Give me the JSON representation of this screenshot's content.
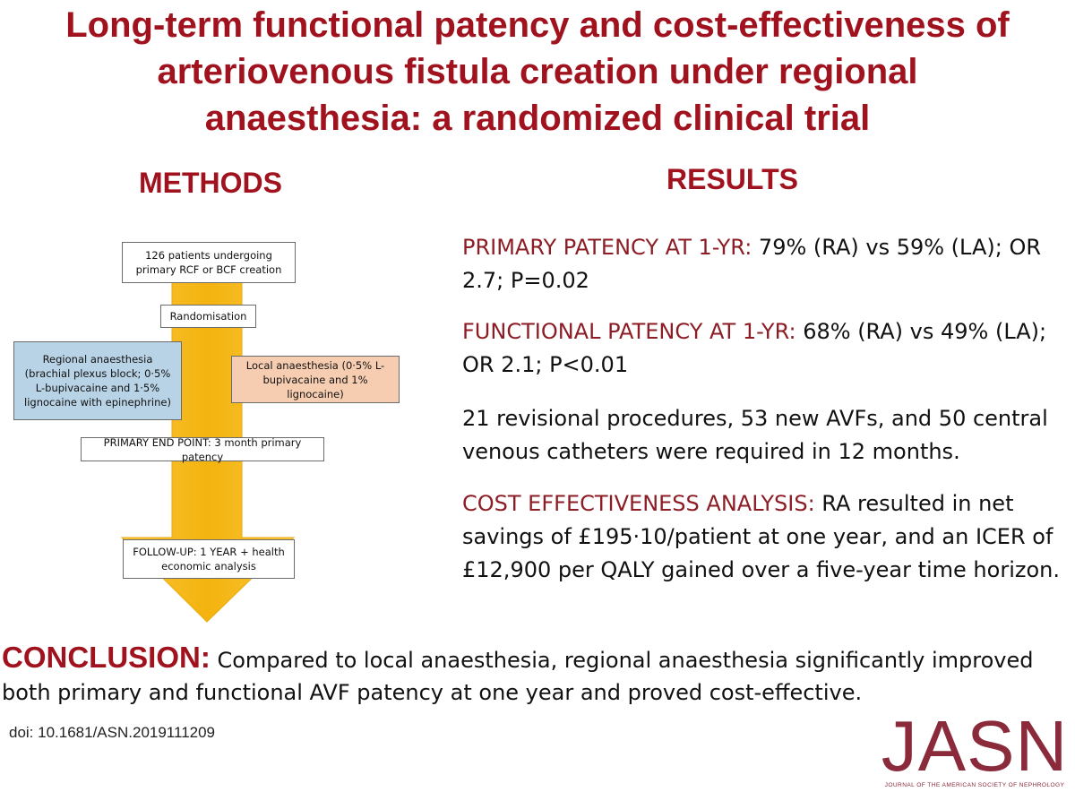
{
  "title": {
    "line1": "Long-term functional patency and cost-effectiveness of",
    "line2": "arteriovenous fistula creation under regional",
    "line3": "anaesthesia: a randomized clinical trial"
  },
  "methods": {
    "heading": "METHODS",
    "flow": {
      "patients": "126 patients undergoing primary RCF or BCF creation",
      "randomisation": "Randomisation",
      "regional": "Regional anaesthesia (brachial plexus block; 0·5% L-bupivacaine and 1·5% lignocaine with epinephrine)",
      "local": "Local anaesthesia (0·5% L-bupivacaine and 1% lignocaine)",
      "endpoint": "PRIMARY END POINT: 3 month primary patency",
      "followup": "FOLLOW-UP: 1 YEAR + health economic analysis"
    },
    "colors": {
      "arrow": "#f7b917",
      "regional_box": "#b9d3e6",
      "local_box": "#f6cdb1"
    }
  },
  "results": {
    "heading": "RESULTS",
    "primary": {
      "label": "PRIMARY PATENCY AT 1-YR:",
      "text": " 79% (RA) vs 59% (LA); OR 2.7; P=0.02"
    },
    "functional": {
      "label": "FUNCTIONAL PATENCY AT 1-YR:",
      "text": " 68% (RA) vs 49% (LA); OR 2.1; P<0.01"
    },
    "revisions": "21 revisional procedures, 53 new AVFs, and 50 central venous catheters were required in 12 months.",
    "cost": {
      "label": "COST EFFECTIVENESS ANALYSIS:",
      "text": " RA resulted in net savings of £195·10/patient at one year, and an ICER of £12,900 per QALY gained over a five-year time horizon."
    }
  },
  "conclusion": {
    "label": "CONCLUSION:",
    "text": " Compared to local anaesthesia, regional anaesthesia significantly improved both primary and functional AVF patency at one year and proved cost-effective."
  },
  "doi": "doi: 10.1681/ASN.2019111209",
  "logo": {
    "word": "JASN",
    "subtitle": "JOURNAL OF THE AMERICAN SOCIETY OF NEPHROLOGY"
  },
  "colors": {
    "heading_red": "#a0121e",
    "label_red": "#8d1d25",
    "logo": "#8a2a3b"
  }
}
